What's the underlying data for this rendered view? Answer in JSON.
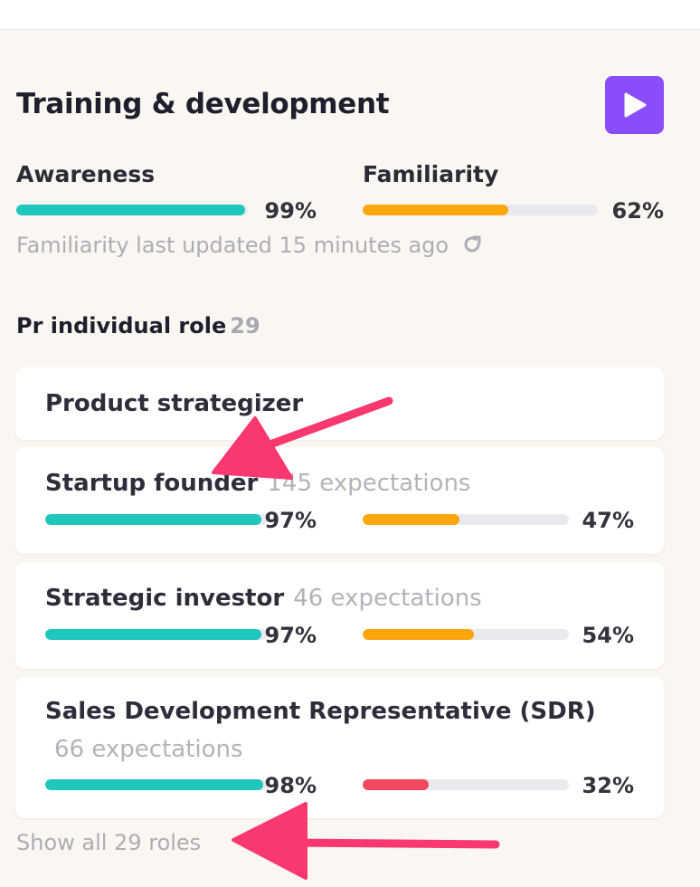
{
  "section": {
    "title": "Training & development",
    "play_icon": "play-icon",
    "accent_color": "#8a4dfb"
  },
  "summary": {
    "awareness": {
      "label": "Awareness",
      "percent_text": "99%",
      "value": 0.99,
      "color": "#1ec6bb"
    },
    "familiarity": {
      "label": "Familiarity",
      "percent_text": "62%",
      "value": 0.62,
      "color": "#fca60d"
    },
    "updated_text": "Familiarity last updated 15 minutes ago",
    "refresh_icon": "refresh-icon"
  },
  "roles": {
    "heading": "Pr individual role",
    "count": "29",
    "items": [
      {
        "name": "Product strategizer",
        "expectations": ""
      },
      {
        "name": "Startup founder",
        "expectations": "145 expectations",
        "awareness_text": "97%",
        "awareness": 0.97,
        "familiarity_text": "47%",
        "familiarity": 0.47,
        "familiarity_color": "#fca60d"
      },
      {
        "name": "Strategic investor",
        "expectations": "46 expectations",
        "awareness_text": "97%",
        "awareness": 0.97,
        "familiarity_text": "54%",
        "familiarity": 0.54,
        "familiarity_color": "#fca60d"
      },
      {
        "name": "Sales Development Representative (SDR)",
        "expectations": "66 expectations",
        "awareness_text": "98%",
        "awareness": 0.98,
        "familiarity_text": "32%",
        "familiarity": 0.32,
        "familiarity_color": "#f0485e"
      }
    ],
    "show_all": "Show all 29 roles"
  },
  "annotation_color": "#f8386f"
}
